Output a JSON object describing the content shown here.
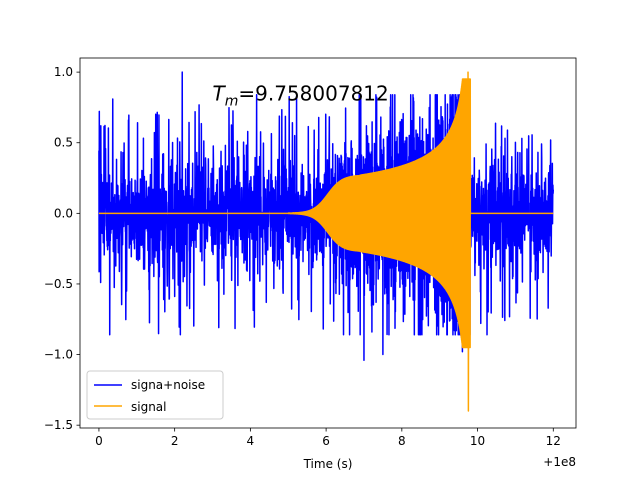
{
  "chart_data": {
    "type": "line",
    "title": "",
    "xlabel": "Time (s)",
    "ylabel": "",
    "x_offset_text": "+1e8",
    "xlim": [
      -0.5,
      12.6
    ],
    "ylim": [
      -1.52,
      1.1
    ],
    "x_ticks": [
      0,
      2,
      4,
      6,
      8,
      10,
      12
    ],
    "x_tick_labels": [
      "0",
      "2",
      "4",
      "6",
      "8",
      "10",
      "12"
    ],
    "y_ticks": [
      -1.5,
      -1.0,
      -0.5,
      0.0,
      0.5,
      1.0
    ],
    "y_tick_labels": [
      "−1.5",
      "−1.0",
      "−0.5",
      "0.0",
      "0.5",
      "1.0"
    ],
    "grid": false,
    "legend_position": "lower-left",
    "annotation": {
      "text_prefix": "T",
      "text_subscript": "m",
      "text_value": "=9.758007812",
      "x": 3.0,
      "y": 0.8
    },
    "series": [
      {
        "name": "signa+noise",
        "color": "#0000ff",
        "x_range": [
          0,
          12
        ],
        "noise_envelope": {
          "typical": 0.45,
          "max": 1.0,
          "min": -1.04
        },
        "chirp_start": 5.0,
        "chirp_merger": 9.758,
        "spikes": [
          {
            "x": 2.2,
            "y": 1.0
          },
          {
            "x": 7.0,
            "y": -1.04
          },
          {
            "x": 7.5,
            "y": -1.0
          },
          {
            "x": 9.6,
            "y": -0.98
          }
        ]
      },
      {
        "name": "signal",
        "color": "#ffa500",
        "x_range": [
          0,
          12
        ],
        "chirp_start": 5.0,
        "plateau_amplitude": 0.27,
        "merger_time": 9.758,
        "peak_max": 1.0,
        "peak_min": -1.4
      }
    ]
  }
}
